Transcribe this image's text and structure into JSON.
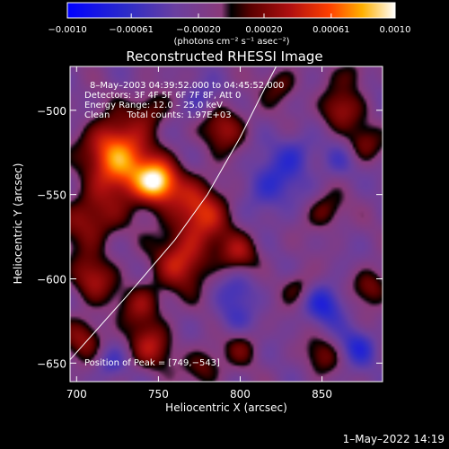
{
  "chart_data": {
    "type": "heatmap",
    "title": "Reconstructed RHESSI Image",
    "xlabel": "Heliocentric X (arcsec)",
    "ylabel": "Heliocentric Y (arcsec)",
    "xlim": [
      696,
      887
    ],
    "ylim": [
      -661,
      -474
    ],
    "x_ticks": [
      700,
      750,
      800,
      850
    ],
    "y_ticks": [
      -500,
      -550,
      -600,
      -650
    ],
    "colorbar": {
      "range": [
        -0.001,
        0.001
      ],
      "tick_values": [
        -0.001,
        -0.00061,
        -0.0002,
        0.0002,
        0.00061,
        0.001
      ],
      "tick_labels": [
        "−0.0010",
        "−0.00061",
        "−0.00020",
        "0.00020",
        "0.00061",
        "0.0010"
      ],
      "unit_label": "(photons cm⁻² s⁻¹ asec⁻²)"
    },
    "annotations": {
      "time": "8–May–2003 04:39:52.000 to 04:45:52.000",
      "detectors": "Detectors: 3F 4F 5F 6F 7F 8F, Att 0",
      "energy": "Energy Range: 12.0 – 25.0 keV",
      "clean": "Clean      Total counts: 1.97E+03",
      "peak": "Position of Peak = [749,−543]"
    },
    "peak": {
      "x": 749,
      "y": -543
    },
    "limb_points": [
      [
        696,
        -648
      ],
      [
        730,
        -611
      ],
      [
        760,
        -577
      ],
      [
        780,
        -550
      ],
      [
        800,
        -516
      ],
      [
        815,
        -487
      ],
      [
        822,
        -474
      ]
    ],
    "intensity_sources": [
      {
        "x": 749,
        "y": -543,
        "amp": 0.001,
        "sigma": 9
      },
      {
        "x": 730,
        "y": -535,
        "amp": 0.00075,
        "sigma": 13
      },
      {
        "x": 775,
        "y": -560,
        "amp": 0.00065,
        "sigma": 14
      },
      {
        "x": 765,
        "y": -590,
        "amp": 0.0006,
        "sigma": 12
      },
      {
        "x": 708,
        "y": -565,
        "amp": 0.00055,
        "sigma": 12
      },
      {
        "x": 720,
        "y": -520,
        "amp": 0.0006,
        "sigma": 12
      },
      {
        "x": 790,
        "y": -510,
        "amp": 0.0005,
        "sigma": 10
      },
      {
        "x": 800,
        "y": -585,
        "amp": 0.00045,
        "sigma": 9
      },
      {
        "x": 745,
        "y": -500,
        "amp": 0.0004,
        "sigma": 9
      },
      {
        "x": 710,
        "y": -600,
        "amp": 0.0005,
        "sigma": 10
      },
      {
        "x": 740,
        "y": -615,
        "amp": 0.00045,
        "sigma": 9
      },
      {
        "x": 745,
        "y": -640,
        "amp": 0.0005,
        "sigma": 10
      },
      {
        "x": 705,
        "y": -635,
        "amp": 0.00045,
        "sigma": 9
      },
      {
        "x": 778,
        "y": -652,
        "amp": 0.0004,
        "sigma": 8
      },
      {
        "x": 860,
        "y": -500,
        "amp": 0.0005,
        "sigma": 9
      },
      {
        "x": 875,
        "y": -520,
        "amp": 0.0004,
        "sigma": 8
      },
      {
        "x": 852,
        "y": -560,
        "amp": 0.0004,
        "sigma": 8
      },
      {
        "x": 880,
        "y": -605,
        "amp": 0.00045,
        "sigma": 8
      },
      {
        "x": 835,
        "y": -605,
        "amp": 0.00035,
        "sigma": 7
      },
      {
        "x": 850,
        "y": -645,
        "amp": 0.00035,
        "sigma": 8
      },
      {
        "x": 800,
        "y": -640,
        "amp": 0.0003,
        "sigma": 8
      },
      {
        "x": 825,
        "y": -485,
        "amp": 0.00035,
        "sigma": 8
      },
      {
        "x": 870,
        "y": -478,
        "amp": 0.0003,
        "sigma": 7
      },
      {
        "x": 818,
        "y": -545,
        "amp": -0.0004,
        "sigma": 12
      },
      {
        "x": 835,
        "y": -525,
        "amp": -0.0003,
        "sigma": 9
      },
      {
        "x": 852,
        "y": -615,
        "amp": -0.00045,
        "sigma": 9
      },
      {
        "x": 872,
        "y": -640,
        "amp": -0.0004,
        "sigma": 8
      },
      {
        "x": 800,
        "y": -605,
        "amp": -0.0003,
        "sigma": 9
      },
      {
        "x": 775,
        "y": -495,
        "amp": -0.0003,
        "sigma": 8
      },
      {
        "x": 720,
        "y": -650,
        "amp": -0.0003,
        "sigma": 7
      },
      {
        "x": 795,
        "y": -625,
        "amp": -0.00025,
        "sigma": 8
      },
      {
        "x": 860,
        "y": -530,
        "amp": -0.00025,
        "sigma": 8
      }
    ]
  },
  "footer": {
    "timestamp": "1–May–2022 14:19"
  }
}
